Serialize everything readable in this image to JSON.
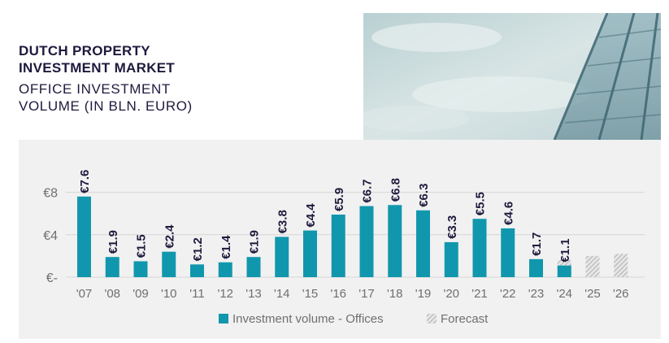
{
  "header": {
    "title": "DUTCH PROPERTY INVESTMENT MARKET",
    "subtitle": "OFFICE INVESTMENT VOLUME (IN BLN. EURO)"
  },
  "colors": {
    "bar": "#1197ad",
    "text": "#1e1a3d",
    "axis_text": "#6f6f6f",
    "panel": "#f1f1f1",
    "forecast_hatch": "#b4b4b4"
  },
  "chart_data": {
    "type": "bar",
    "categories": [
      "'07",
      "'08",
      "'09",
      "'10",
      "'11",
      "'12",
      "'13",
      "'14",
      "'15",
      "'16",
      "'17",
      "'18",
      "'19",
      "'20",
      "'21",
      "'22",
      "'23",
      "'24",
      "'25",
      "'26"
    ],
    "series": [
      {
        "name": "Investment volume - Offices",
        "values": [
          7.6,
          1.9,
          1.5,
          2.4,
          1.2,
          1.4,
          1.9,
          3.8,
          4.4,
          5.9,
          6.7,
          6.8,
          6.3,
          3.3,
          5.5,
          4.6,
          1.7,
          1.1,
          null,
          null
        ]
      },
      {
        "name": "Forecast",
        "values": [
          null,
          null,
          null,
          null,
          null,
          null,
          null,
          null,
          null,
          null,
          null,
          null,
          null,
          null,
          null,
          null,
          null,
          1.6,
          2.0,
          2.2
        ]
      }
    ],
    "data_labels": [
      "€7.6",
      "€1.9",
      "€1.5",
      "€2.4",
      "€1.2",
      "€1.4",
      "€1.9",
      "€3.8",
      "€4.4",
      "€5.9",
      "€6.7",
      "€6.8",
      "€6.3",
      "€3.3",
      "€5.5",
      "€4.6",
      "€1.7",
      "€1.1",
      null,
      null
    ],
    "y_ticks": [
      {
        "value": 8,
        "label": "€8"
      },
      {
        "value": 4,
        "label": "€4"
      },
      {
        "value": 0,
        "label": "€-"
      }
    ],
    "ylim": [
      0,
      8
    ],
    "grid": true,
    "legend": [
      {
        "label": "Investment volume - Offices",
        "style": "solid"
      },
      {
        "label": "Forecast",
        "style": "hatched"
      }
    ],
    "legend_position": "bottom"
  }
}
